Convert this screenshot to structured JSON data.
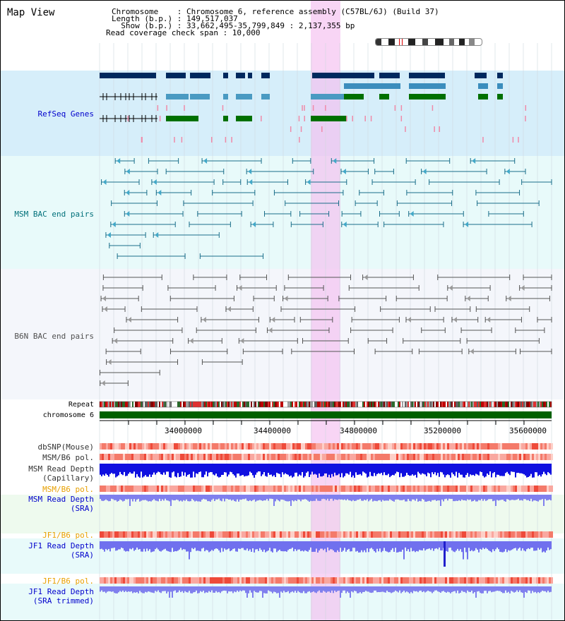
{
  "header": {
    "title": "Map View",
    "info_lines": [
      "Chromosome    : Chromosome 6, reference assembly (C57BL/6J) (Build 37)",
      "Length (b.p.) : 149,517,037",
      "  Show (b.p.) : 33,662,495-35,799,849 : 2,137,355 bp",
      "Read coverage check span : 10,000"
    ]
  },
  "tracks": {
    "refseq": "RefSeq Genes",
    "msm_bac": "MSM BAC end pairs",
    "b6n_bac": "B6N BAC end pairs",
    "repeat": "Repeat",
    "chromosome": "chromosome 6",
    "dbsnp": "dbSNP(Mouse)",
    "msm_b6_pol": "MSM/B6 pol.",
    "msm_read_depth_cap_1": "MSM Read Depth",
    "msm_read_depth_cap_2": "(Capillary)",
    "msm_b6_pol_sra": "MSM/B6 pol.",
    "msm_read_depth_sra_1": "MSM Read Depth",
    "msm_read_depth_sra_2": "(SRA)",
    "jf1_b6_pol": "JF1/B6 pol.",
    "jf1_read_depth_1": "JF1 Read Depth",
    "jf1_read_depth_2": "(SRA)",
    "jf1_b6_pol_trim": "JF1/B6 pol.",
    "jf1_trim_1": "JF1 Read Depth",
    "jf1_trim_2": "(SRA trimmed)"
  },
  "axis": {
    "ticks": [
      "34000000",
      "34400000",
      "34800000",
      "35200000",
      "35600000"
    ]
  },
  "colors": {
    "highlight": "#f5c8ef",
    "refseq_bg": "#d6eefa",
    "bac_bg": "#e8fafa",
    "b6n_bg": "#f4f6fb",
    "label_blue": "#0000cc",
    "label_teal": "#00707a",
    "label_gray": "#505050",
    "label_orange": "#e8a000"
  }
}
